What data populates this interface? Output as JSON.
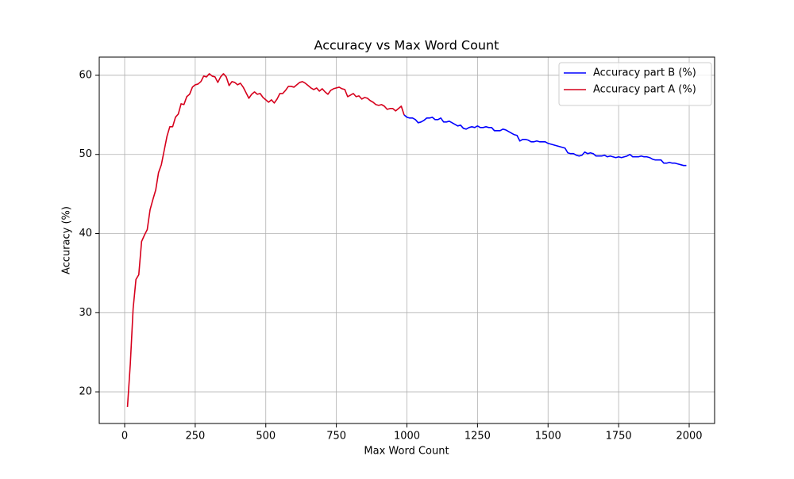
{
  "chart_data": {
    "type": "line",
    "title": "Accuracy vs Max Word Count",
    "x_label": "Max Word Count",
    "y_label": "Accuracy (%)",
    "xlim": [
      -90,
      2090
    ],
    "ylim": [
      16,
      62.3
    ],
    "xticks": [
      0,
      250,
      500,
      750,
      1000,
      1250,
      1500,
      1750,
      2000
    ],
    "yticks": [
      20,
      30,
      40,
      50,
      60
    ],
    "grid": true,
    "legend": "upper right",
    "series": [
      {
        "name": "Accuracy part B (%)",
        "color": "#0000ff",
        "x": [
          990,
          1000,
          1010,
          1020,
          1030,
          1040,
          1050,
          1060,
          1070,
          1080,
          1090,
          1100,
          1110,
          1120,
          1130,
          1140,
          1150,
          1160,
          1170,
          1180,
          1190,
          1200,
          1210,
          1220,
          1230,
          1240,
          1250,
          1260,
          1270,
          1280,
          1290,
          1300,
          1310,
          1320,
          1330,
          1340,
          1350,
          1360,
          1370,
          1380,
          1390,
          1400,
          1410,
          1420,
          1430,
          1440,
          1450,
          1460,
          1470,
          1480,
          1490,
          1500,
          1510,
          1520,
          1530,
          1540,
          1550,
          1560,
          1570,
          1580,
          1590,
          1600,
          1610,
          1620,
          1630,
          1640,
          1650,
          1660,
          1670,
          1680,
          1690,
          1700,
          1710,
          1720,
          1730,
          1740,
          1750,
          1760,
          1770,
          1780,
          1790,
          1800,
          1810,
          1820,
          1830,
          1840,
          1850,
          1860,
          1870,
          1880,
          1890,
          1900,
          1910,
          1920,
          1930,
          1940,
          1950,
          1960,
          1970,
          1980,
          1990
        ],
        "values": [
          55,
          54.7,
          54.6,
          54.6,
          54.4,
          54,
          54.1,
          54.3,
          54.6,
          54.6,
          54.7,
          54.4,
          54.4,
          54.6,
          54.1,
          54.1,
          54.2,
          54,
          53.8,
          53.6,
          53.7,
          53.3,
          53.2,
          53.4,
          53.5,
          53.4,
          53.6,
          53.4,
          53.4,
          53.5,
          53.4,
          53.4,
          53,
          53,
          53,
          53.2,
          53.1,
          52.9,
          52.7,
          52.5,
          52.4,
          51.7,
          51.9,
          51.9,
          51.8,
          51.6,
          51.6,
          51.7,
          51.6,
          51.6,
          51.6,
          51.4,
          51.3,
          51.2,
          51.1,
          51,
          50.9,
          50.8,
          50.2,
          50.1,
          50.1,
          49.9,
          49.8,
          49.9,
          50.3,
          50.1,
          50.2,
          50.1,
          49.8,
          49.8,
          49.8,
          49.9,
          49.7,
          49.8,
          49.7,
          49.6,
          49.7,
          49.6,
          49.7,
          49.8,
          50,
          49.7,
          49.7,
          49.7,
          49.8,
          49.7,
          49.7,
          49.6,
          49.4,
          49.3,
          49.3,
          49.3,
          48.9,
          48.9,
          49,
          48.9,
          48.9,
          48.8,
          48.7,
          48.6,
          48.6
        ]
      },
      {
        "name": "Accuracy part A (%)",
        "color": "#d6001c",
        "x": [
          10,
          20,
          30,
          40,
          50,
          60,
          70,
          80,
          90,
          100,
          110,
          120,
          130,
          140,
          150,
          160,
          170,
          180,
          190,
          200,
          210,
          220,
          230,
          240,
          250,
          260,
          270,
          280,
          290,
          300,
          310,
          320,
          330,
          340,
          350,
          360,
          370,
          380,
          390,
          400,
          410,
          420,
          430,
          440,
          450,
          460,
          470,
          480,
          490,
          500,
          510,
          520,
          530,
          540,
          550,
          560,
          570,
          580,
          590,
          600,
          610,
          620,
          630,
          640,
          650,
          660,
          670,
          680,
          690,
          700,
          710,
          720,
          730,
          740,
          750,
          760,
          770,
          780,
          790,
          800,
          810,
          820,
          830,
          840,
          850,
          860,
          870,
          880,
          890,
          900,
          910,
          920,
          930,
          940,
          950,
          960,
          970,
          980,
          990
        ],
        "values": [
          18.1,
          23.5,
          30.5,
          34.2,
          34.8,
          39,
          39.8,
          40.5,
          43,
          44.3,
          45.5,
          47.7,
          48.7,
          50.5,
          52.3,
          53.5,
          53.5,
          54.7,
          55.1,
          56.4,
          56.3,
          57.3,
          57.6,
          58.5,
          58.8,
          58.9,
          59.2,
          59.9,
          59.8,
          60.2,
          59.9,
          59.8,
          59.1,
          59.8,
          60.2,
          59.8,
          58.7,
          59.2,
          59.1,
          58.8,
          59,
          58.5,
          57.8,
          57.1,
          57.6,
          57.9,
          57.6,
          57.7,
          57.2,
          56.9,
          56.6,
          56.9,
          56.5,
          57,
          57.7,
          57.7,
          58.1,
          58.6,
          58.6,
          58.5,
          58.8,
          59.1,
          59.2,
          59,
          58.7,
          58.4,
          58.2,
          58.4,
          58,
          58.3,
          57.9,
          57.6,
          58.1,
          58.3,
          58.4,
          58.5,
          58.3,
          58.2,
          57.3,
          57.5,
          57.7,
          57.3,
          57.4,
          57,
          57.2,
          57.1,
          56.8,
          56.6,
          56.3,
          56.2,
          56.3,
          56.1,
          55.7,
          55.8,
          55.8,
          55.5,
          55.8,
          56.1,
          55
        ]
      }
    ]
  }
}
